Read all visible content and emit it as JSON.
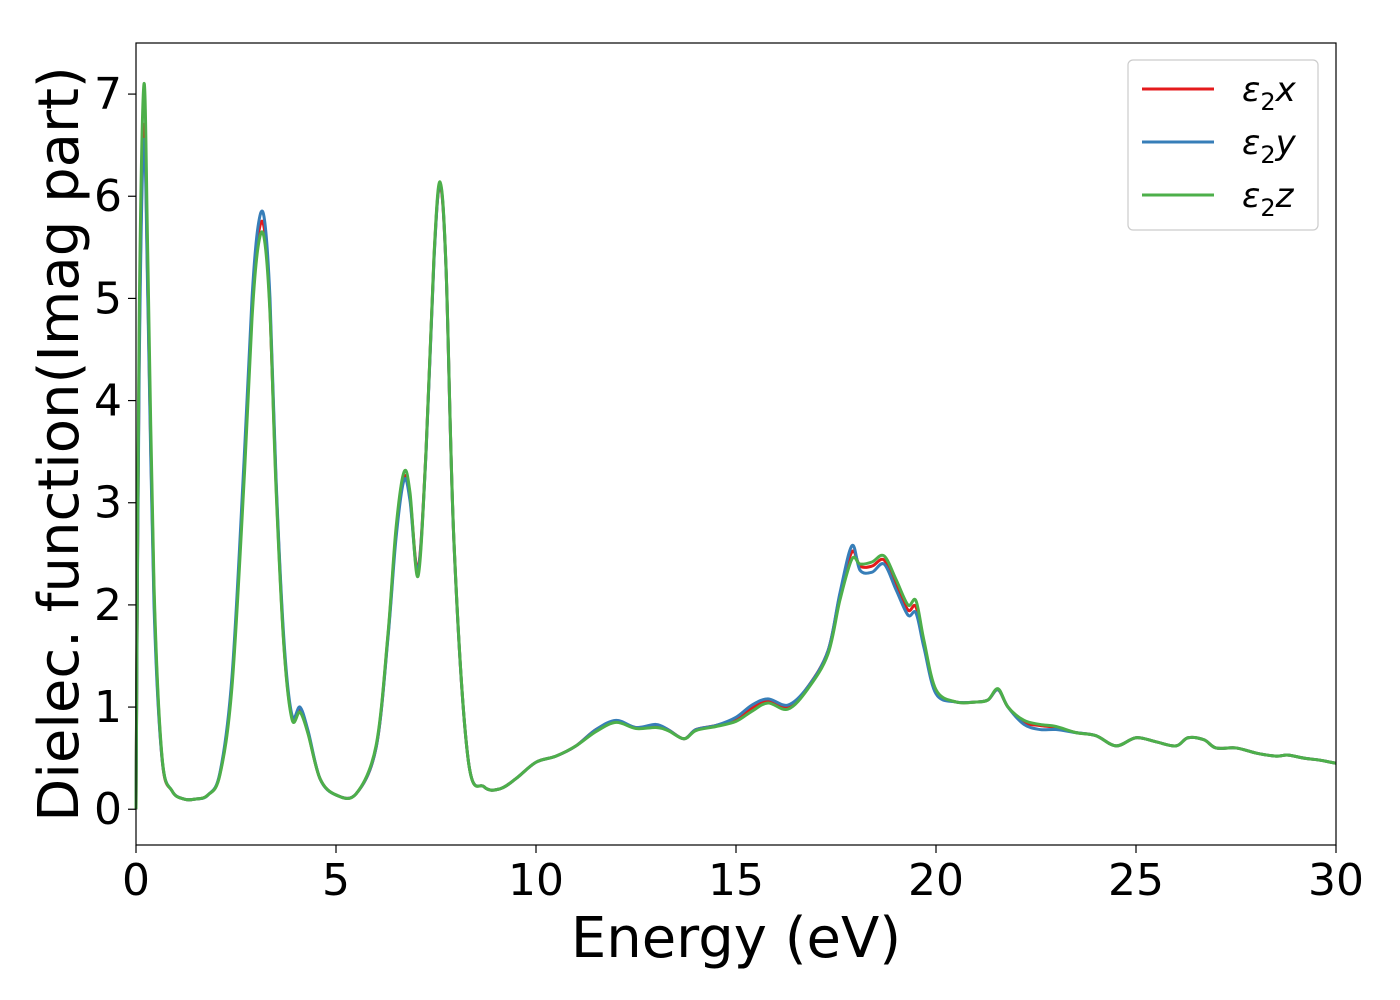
{
  "chart_data": {
    "type": "line",
    "title": "",
    "xlabel": "Energy (eV)",
    "ylabel": "Dielec. function(Imag part)",
    "xlim": [
      0,
      30
    ],
    "ylim": [
      -0.35,
      7.5
    ],
    "xticks": [
      0,
      5,
      10,
      15,
      20,
      25,
      30
    ],
    "yticks": [
      0,
      1,
      2,
      3,
      4,
      5,
      6,
      7
    ],
    "grid": false,
    "legend_position": "top-right",
    "series": [
      {
        "name": "ε2x",
        "legend_base": "ε",
        "legend_sub": "2",
        "legend_suffix": "x",
        "color": "#e41a1c",
        "x": [
          0,
          0.08,
          0.2,
          0.3,
          0.45,
          0.65,
          0.9,
          1.2,
          1.5,
          1.8,
          2.1,
          2.4,
          2.7,
          2.9,
          3.05,
          3.2,
          3.35,
          3.5,
          3.7,
          3.9,
          4.1,
          4.3,
          4.6,
          5.0,
          5.5,
          6.0,
          6.3,
          6.5,
          6.7,
          6.85,
          7.05,
          7.25,
          7.45,
          7.6,
          7.75,
          7.95,
          8.3,
          8.7,
          9.1,
          9.5,
          10.0,
          10.5,
          11.0,
          11.5,
          12.0,
          12.5,
          13.0,
          13.3,
          13.7,
          14.0,
          14.5,
          15.0,
          15.4,
          15.8,
          16.3,
          16.8,
          17.3,
          17.6,
          17.9,
          18.1,
          18.4,
          18.7,
          19.0,
          19.3,
          19.5,
          19.7,
          20.0,
          20.5,
          21.0,
          21.3,
          21.55,
          21.8,
          22.2,
          22.6,
          23.0,
          23.5,
          24.0,
          24.5,
          25.0,
          25.5,
          26.0,
          26.3,
          26.7,
          27.0,
          27.5,
          28.0,
          28.5,
          28.8,
          29.2,
          29.6,
          30.0
        ],
        "y": [
          0,
          4.5,
          6.7,
          5.0,
          2.1,
          0.5,
          0.18,
          0.1,
          0.1,
          0.14,
          0.35,
          1.25,
          3.3,
          4.9,
          5.6,
          5.7,
          4.9,
          3.2,
          1.6,
          0.9,
          0.97,
          0.75,
          0.3,
          0.14,
          0.15,
          0.6,
          1.7,
          2.7,
          3.25,
          3.05,
          2.35,
          3.5,
          5.4,
          6.1,
          5.3,
          2.6,
          0.5,
          0.22,
          0.2,
          0.3,
          0.46,
          0.52,
          0.62,
          0.78,
          0.86,
          0.8,
          0.82,
          0.78,
          0.69,
          0.78,
          0.82,
          0.88,
          0.99,
          1.06,
          1.0,
          1.2,
          1.55,
          2.1,
          2.52,
          2.38,
          2.38,
          2.44,
          2.2,
          1.95,
          1.98,
          1.6,
          1.15,
          1.05,
          1.05,
          1.07,
          1.17,
          1.0,
          0.85,
          0.82,
          0.8,
          0.75,
          0.72,
          0.62,
          0.7,
          0.66,
          0.62,
          0.7,
          0.68,
          0.6,
          0.6,
          0.55,
          0.52,
          0.53,
          0.5,
          0.48,
          0.45
        ]
      },
      {
        "name": "ε2y",
        "legend_base": "ε",
        "legend_sub": "2",
        "legend_suffix": "y",
        "color": "#377eb8",
        "x": [
          0,
          0.08,
          0.2,
          0.3,
          0.45,
          0.65,
          0.9,
          1.2,
          1.5,
          1.8,
          2.1,
          2.4,
          2.7,
          2.9,
          3.05,
          3.2,
          3.35,
          3.5,
          3.7,
          3.9,
          4.1,
          4.3,
          4.6,
          5.0,
          5.5,
          6.0,
          6.3,
          6.5,
          6.7,
          6.85,
          7.05,
          7.25,
          7.45,
          7.6,
          7.75,
          7.95,
          8.3,
          8.7,
          9.1,
          9.5,
          10.0,
          10.5,
          11.0,
          11.5,
          12.0,
          12.5,
          13.0,
          13.3,
          13.7,
          14.0,
          14.5,
          15.0,
          15.4,
          15.8,
          16.3,
          16.8,
          17.3,
          17.6,
          17.9,
          18.1,
          18.4,
          18.7,
          19.0,
          19.3,
          19.5,
          19.7,
          20.0,
          20.5,
          21.0,
          21.3,
          21.55,
          21.8,
          22.2,
          22.6,
          23.0,
          23.5,
          24.0,
          24.5,
          25.0,
          25.5,
          26.0,
          26.3,
          26.7,
          27.0,
          27.5,
          28.0,
          28.5,
          28.8,
          29.2,
          29.6,
          30.0
        ],
        "y": [
          0,
          4.3,
          6.55,
          4.9,
          2.0,
          0.5,
          0.18,
          0.1,
          0.1,
          0.14,
          0.36,
          1.3,
          3.4,
          5.0,
          5.7,
          5.8,
          5.0,
          3.25,
          1.65,
          0.92,
          1.0,
          0.77,
          0.3,
          0.14,
          0.15,
          0.6,
          1.68,
          2.65,
          3.22,
          3.02,
          2.33,
          3.48,
          5.38,
          6.12,
          5.3,
          2.6,
          0.5,
          0.22,
          0.2,
          0.3,
          0.46,
          0.52,
          0.62,
          0.78,
          0.87,
          0.8,
          0.83,
          0.78,
          0.69,
          0.78,
          0.82,
          0.9,
          1.02,
          1.08,
          1.02,
          1.2,
          1.55,
          2.12,
          2.58,
          2.34,
          2.32,
          2.4,
          2.15,
          1.9,
          1.92,
          1.58,
          1.13,
          1.05,
          1.05,
          1.07,
          1.17,
          1.0,
          0.83,
          0.78,
          0.78,
          0.75,
          0.72,
          0.62,
          0.7,
          0.66,
          0.62,
          0.7,
          0.68,
          0.6,
          0.6,
          0.55,
          0.52,
          0.53,
          0.5,
          0.48,
          0.45
        ]
      },
      {
        "name": "ε2z",
        "legend_base": "ε",
        "legend_sub": "2",
        "legend_suffix": "z",
        "color": "#4daf4a",
        "x": [
          0,
          0.08,
          0.2,
          0.3,
          0.45,
          0.65,
          0.9,
          1.2,
          1.5,
          1.8,
          2.1,
          2.4,
          2.7,
          2.9,
          3.05,
          3.2,
          3.35,
          3.5,
          3.7,
          3.9,
          4.1,
          4.3,
          4.6,
          5.0,
          5.5,
          6.0,
          6.3,
          6.5,
          6.7,
          6.85,
          7.05,
          7.25,
          7.45,
          7.6,
          7.75,
          7.95,
          8.3,
          8.7,
          9.1,
          9.5,
          10.0,
          10.5,
          11.0,
          11.5,
          12.0,
          12.5,
          13.0,
          13.3,
          13.7,
          14.0,
          14.5,
          15.0,
          15.4,
          15.8,
          16.3,
          16.8,
          17.3,
          17.6,
          17.9,
          18.1,
          18.4,
          18.7,
          19.0,
          19.3,
          19.5,
          19.7,
          20.0,
          20.5,
          21.0,
          21.3,
          21.55,
          21.8,
          22.2,
          22.6,
          23.0,
          23.5,
          24.0,
          24.5,
          25.0,
          25.5,
          26.0,
          26.3,
          26.7,
          27.0,
          27.5,
          28.0,
          28.5,
          28.8,
          29.2,
          29.6,
          30.0
        ],
        "y": [
          0,
          4.8,
          7.1,
          5.3,
          2.2,
          0.52,
          0.18,
          0.1,
          0.1,
          0.14,
          0.34,
          1.2,
          3.2,
          4.8,
          5.5,
          5.6,
          4.85,
          3.15,
          1.58,
          0.88,
          0.95,
          0.74,
          0.3,
          0.14,
          0.15,
          0.62,
          1.72,
          2.75,
          3.3,
          3.1,
          2.28,
          3.5,
          5.42,
          6.14,
          5.32,
          2.62,
          0.5,
          0.22,
          0.2,
          0.3,
          0.46,
          0.52,
          0.62,
          0.76,
          0.85,
          0.79,
          0.8,
          0.77,
          0.69,
          0.77,
          0.81,
          0.86,
          0.96,
          1.04,
          0.98,
          1.18,
          1.52,
          2.05,
          2.45,
          2.4,
          2.42,
          2.48,
          2.25,
          2.0,
          2.04,
          1.65,
          1.17,
          1.05,
          1.05,
          1.07,
          1.18,
          1.0,
          0.87,
          0.83,
          0.81,
          0.75,
          0.72,
          0.62,
          0.7,
          0.66,
          0.62,
          0.7,
          0.68,
          0.6,
          0.6,
          0.55,
          0.52,
          0.53,
          0.5,
          0.48,
          0.45
        ]
      }
    ]
  }
}
